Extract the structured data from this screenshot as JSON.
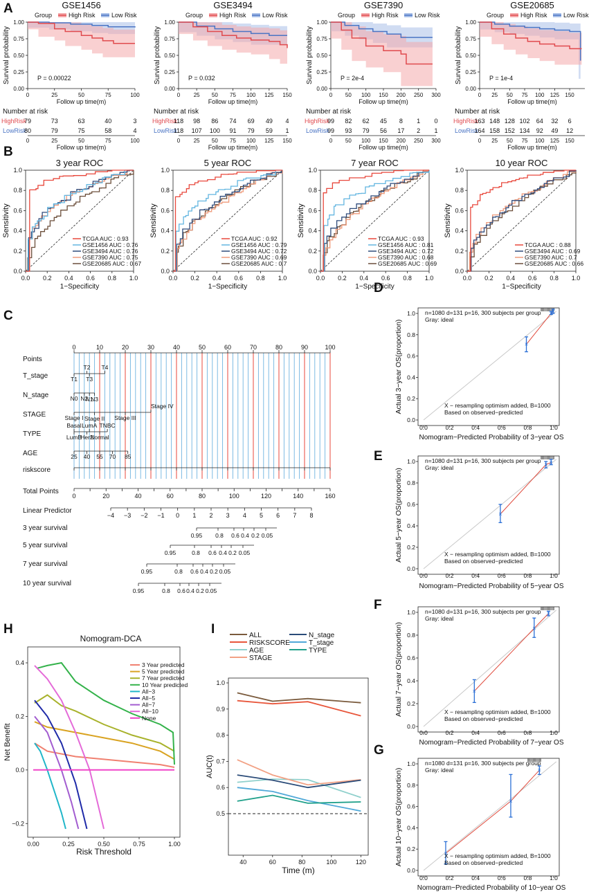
{
  "panel_letters": {
    "A": "A",
    "B": "B",
    "C": "C",
    "D": "D",
    "E": "E",
    "F": "F",
    "G": "G",
    "H": "H",
    "I": "I"
  },
  "colors": {
    "high": "#e04a4e",
    "low": "#4a74c4",
    "high_band": "#f4a9ab",
    "low_band": "#a9c0e8",
    "red_line": "#e04a3c",
    "blue_err": "#2a6fd6"
  },
  "km": [
    {
      "title": "GSE1456",
      "xmax": 100,
      "xticks": [
        0,
        25,
        50,
        75,
        100
      ],
      "ylabel": "Survival probability",
      "xlabel": "Follow up time(m)",
      "group_label": "Group",
      "legend": [
        "High Risk",
        "Low Risk"
      ],
      "p_text": "P = 0.00022",
      "high": [
        [
          0,
          1
        ],
        [
          10,
          0.98
        ],
        [
          25,
          0.9
        ],
        [
          35,
          0.86
        ],
        [
          50,
          0.8
        ],
        [
          60,
          0.76
        ],
        [
          70,
          0.72
        ],
        [
          80,
          0.68
        ],
        [
          100,
          0.68
        ]
      ],
      "low": [
        [
          0,
          1
        ],
        [
          20,
          0.99
        ],
        [
          40,
          0.97
        ],
        [
          60,
          0.95
        ],
        [
          75,
          0.93
        ],
        [
          100,
          0.92
        ]
      ],
      "risk_title": "Number at risk",
      "row_labels": [
        "HighRisk",
        "LowRisk"
      ],
      "high_counts": [
        "79",
        "73",
        "63",
        "40",
        "3"
      ],
      "low_counts": [
        "80",
        "79",
        "75",
        "58",
        "4"
      ]
    },
    {
      "title": "GSE3494",
      "xmax": 150,
      "xticks": [
        0,
        25,
        50,
        75,
        100,
        125,
        150
      ],
      "ylabel": "Survival probability",
      "xlabel": "Follow up time(m)",
      "group_label": "Group",
      "legend": [
        "High Risk",
        "Low Risk"
      ],
      "p_text": "P = 0.032",
      "high": [
        [
          0,
          1
        ],
        [
          20,
          0.93
        ],
        [
          40,
          0.86
        ],
        [
          60,
          0.8
        ],
        [
          80,
          0.76
        ],
        [
          100,
          0.73
        ],
        [
          125,
          0.71
        ],
        [
          140,
          0.66
        ],
        [
          150,
          0.61
        ]
      ],
      "low": [
        [
          0,
          1
        ],
        [
          25,
          0.94
        ],
        [
          50,
          0.9
        ],
        [
          75,
          0.86
        ],
        [
          100,
          0.83
        ],
        [
          125,
          0.8
        ],
        [
          150,
          0.8
        ]
      ],
      "risk_title": "Number at risk",
      "row_labels": [
        "HighRisk",
        "LowRisk"
      ],
      "high_counts": [
        "118",
        "98",
        "86",
        "74",
        "69",
        "49",
        "4"
      ],
      "low_counts": [
        "118",
        "107",
        "100",
        "91",
        "79",
        "59",
        "1"
      ]
    },
    {
      "title": "GSE7390",
      "xmax": 300,
      "xticks": [
        0,
        50,
        100,
        150,
        200,
        250,
        300
      ],
      "ylabel": "Survival probability",
      "xlabel": "Follow up time(m)",
      "group_label": "Group",
      "legend": [
        "High Risk",
        "Low Risk"
      ],
      "p_text": "P = 2e-4",
      "high": [
        [
          0,
          1
        ],
        [
          30,
          0.88
        ],
        [
          60,
          0.76
        ],
        [
          100,
          0.64
        ],
        [
          150,
          0.57
        ],
        [
          200,
          0.52
        ],
        [
          215,
          0.37
        ],
        [
          290,
          0.37
        ]
      ],
      "low": [
        [
          0,
          1
        ],
        [
          40,
          0.95
        ],
        [
          80,
          0.9
        ],
        [
          120,
          0.86
        ],
        [
          160,
          0.82
        ],
        [
          200,
          0.77
        ],
        [
          290,
          0.77
        ]
      ],
      "risk_title": "Number at risk",
      "row_labels": [
        "HighRisk",
        "LowRisk"
      ],
      "high_counts": [
        "99",
        "82",
        "62",
        "45",
        "8",
        "1",
        "0"
      ],
      "low_counts": [
        "99",
        "93",
        "79",
        "56",
        "17",
        "2",
        "1"
      ]
    },
    {
      "title": "GSE20685",
      "xmax": 170,
      "xticks": [
        0,
        25,
        50,
        75,
        100,
        125,
        150
      ],
      "ylabel": "Survival probability",
      "xlabel": "Follow up time(m)",
      "group_label": "Group",
      "legend": [
        "High Risk",
        "Low Risk"
      ],
      "p_text": "P = 1e-4",
      "high": [
        [
          0,
          1
        ],
        [
          20,
          0.9
        ],
        [
          40,
          0.82
        ],
        [
          60,
          0.76
        ],
        [
          80,
          0.71
        ],
        [
          100,
          0.67
        ],
        [
          125,
          0.64
        ],
        [
          150,
          0.6
        ],
        [
          170,
          0.6
        ]
      ],
      "low": [
        [
          0,
          1
        ],
        [
          25,
          0.97
        ],
        [
          50,
          0.94
        ],
        [
          75,
          0.92
        ],
        [
          100,
          0.9
        ],
        [
          125,
          0.88
        ],
        [
          150,
          0.86
        ],
        [
          165,
          0.86
        ],
        [
          168,
          0.42
        ]
      ],
      "risk_title": "Number at risk",
      "row_labels": [
        "HighRisk",
        "LowRisk"
      ],
      "high_counts": [
        "163",
        "148",
        "128",
        "102",
        "64",
        "32",
        "6"
      ],
      "low_counts": [
        "164",
        "158",
        "152",
        "134",
        "92",
        "49",
        "12"
      ]
    }
  ],
  "roc": [
    {
      "title": "3 year ROC",
      "ylabel": "Sensitivity",
      "xlabel": "1−Specificity",
      "legend": [
        "TCGA AUC : 0.93",
        "GSE1456 AUC : 0.76",
        "GSE3494 AUC : 0.76",
        "GSE7390 AUC : 0.75",
        "GSE20685 AUC : 0.67"
      ],
      "aucs": [
        0.93,
        0.76,
        0.76,
        0.75,
        0.67
      ]
    },
    {
      "title": "5 year ROC",
      "ylabel": "Sensitivity",
      "xlabel": "1−Specificity",
      "legend": [
        "TCGA AUC : 0.92",
        "GSE1456 AUC : 0.79",
        "GSE3494 AUC : 0.72",
        "GSE7390 AUC : 0.69",
        "GSE20685 AUC : 0.7"
      ],
      "aucs": [
        0.92,
        0.79,
        0.72,
        0.69,
        0.7
      ]
    },
    {
      "title": "7 year ROC",
      "ylabel": "Sensitivity",
      "xlabel": "1−Specificity",
      "legend": [
        "TCGA AUC : 0.93",
        "GSE1456 AUC : 0.81",
        "GSE3494 AUC : 0.72",
        "GSE7390 AUC : 0.68",
        "GSE20685 AUC : 0.69"
      ],
      "aucs": [
        0.93,
        0.81,
        0.72,
        0.68,
        0.69
      ]
    },
    {
      "title": "10 year ROC",
      "ylabel": "Sensitivity",
      "xlabel": "1−Specificity",
      "legend": [
        "TCGA AUC : 0.88",
        "GSE3494 AUC : 0.69",
        "GSE7390 AUC : 0.7",
        "GSE20685 AUC : 0.66"
      ],
      "aucs": [
        0.88,
        0.69,
        0.7,
        0.66
      ]
    }
  ],
  "roc_colors_4": [
    "#e8473b",
    "#62b5e0",
    "#2e4a7a",
    "#ef9a7a",
    "#6b4e3a"
  ],
  "roc_colors_3": [
    "#e8473b",
    "#2e4a7a",
    "#ef9a7a",
    "#6b4e3a"
  ],
  "roc_ticks": [
    "0.0",
    "0.2",
    "0.4",
    "0.6",
    "0.8",
    "1.0"
  ],
  "nomogram": {
    "points_label": "Points",
    "points_ticks": [
      "0",
      "10",
      "20",
      "30",
      "40",
      "50",
      "60",
      "70",
      "80",
      "90",
      "100"
    ],
    "rows": [
      {
        "name": "T_stage",
        "labels": [
          "T2",
          "T4",
          "T1",
          "T3"
        ]
      },
      {
        "name": "N_stage",
        "labels": [
          "N1",
          "N3",
          "N0",
          "N2"
        ]
      },
      {
        "name": "STAGE",
        "labels": [
          "Stage II",
          "Stage IV",
          "Stage I",
          "Stage III"
        ]
      },
      {
        "name": "TYPE",
        "labels": [
          "Basal",
          "LumA",
          "TNBC",
          "LumB",
          "Her2",
          "Normal"
        ]
      },
      {
        "name": "AGE",
        "labels": [
          "25",
          "40",
          "55",
          "70",
          "85"
        ]
      },
      {
        "name": "riskscore",
        "labels": [
          "0",
          "5",
          "10",
          "15",
          "20",
          "25"
        ]
      }
    ],
    "total_label": "Total Points",
    "total_ticks": [
      "0",
      "20",
      "40",
      "60",
      "80",
      "100",
      "120",
      "140",
      "160"
    ],
    "lp_label": "Linear Predictor",
    "lp_ticks": [
      "−4",
      "−3",
      "−2",
      "−1",
      "0",
      "1",
      "2",
      "3",
      "4",
      "5",
      "6",
      "7",
      "8"
    ],
    "surv": [
      {
        "label": "3 year survival",
        "ticks": [
          "0.95",
          "0.8",
          "0.6",
          "0.4",
          "0.2",
          "0.05"
        ]
      },
      {
        "label": "5 year survival",
        "ticks": [
          "0.95",
          "0.8",
          "0.6",
          "0.4",
          "0.2",
          "0.05"
        ]
      },
      {
        "label": "7 year survival",
        "ticks": [
          "0.95",
          "0.8",
          "0.6",
          "0.4",
          "0.2",
          "0.05"
        ]
      },
      {
        "label": "10 year survival",
        "ticks": [
          "0.95",
          "0.8",
          "0.6",
          "0.4",
          "0.2",
          "0.05"
        ]
      }
    ]
  },
  "calibration": [
    {
      "ylabel": "Actual 3−year OS(proportion)",
      "xlabel": "Nomogram−Predicted Probability of 3−year OS",
      "info": "n=1080 d=131 p=16, 300 subjects per group",
      "gray": "Gray: ideal",
      "note1": "X − resampling optimism added, B=1000",
      "note2": "Based on observed−predicted",
      "points": [
        {
          "x": 0.79,
          "y": 0.71,
          "lo": 0.64,
          "hi": 0.78
        },
        {
          "x": 0.98,
          "y": 1.0,
          "lo": 0.99,
          "hi": 1.02
        },
        {
          "x": 0.995,
          "y": 1.02,
          "lo": 1.0,
          "hi": 1.04
        }
      ]
    },
    {
      "ylabel": "Actual 5−year OS(proportion)",
      "xlabel": "Nomogram−Predicted Probability of 5−year OS",
      "info": "n=1080 d=131 p=16, 300 subjects per group",
      "gray": "Gray: ideal",
      "note1": "X − resampling optimism added, B=1000",
      "note2": "Based on observed−predicted",
      "points": [
        {
          "x": 0.59,
          "y": 0.51,
          "lo": 0.43,
          "hi": 0.6
        },
        {
          "x": 0.94,
          "y": 0.97,
          "lo": 0.94,
          "hi": 1.0
        },
        {
          "x": 0.98,
          "y": 0.99,
          "lo": 0.97,
          "hi": 1.02
        }
      ]
    },
    {
      "ylabel": "Actual 7−year OS(proportion)",
      "xlabel": "Nomogram−Predicted Probability of 7−year OS",
      "info": "n=1080 d=131 p=16, 300 subjects per group",
      "gray": "Gray: ideal",
      "note1": "X − resampling optimism added, B=1000",
      "note2": "Based on observed−predicted",
      "points": [
        {
          "x": 0.39,
          "y": 0.31,
          "lo": 0.21,
          "hi": 0.41
        },
        {
          "x": 0.85,
          "y": 0.86,
          "lo": 0.78,
          "hi": 0.95
        },
        {
          "x": 0.96,
          "y": 0.99,
          "lo": 0.97,
          "hi": 1.01
        }
      ]
    },
    {
      "ylabel": "Actual 10−year OS(proportion)",
      "xlabel": "Nomogram−Predicted Probability of 10−year OS",
      "info": "n=1080 d=131 p=16, 300 subjects per group",
      "gray": "Gray: ideal",
      "note1": "X − resampling optimism added, B=1000",
      "note2": "Based on observed−predicted",
      "points": [
        {
          "x": 0.17,
          "y": 0.16,
          "lo": 0.06,
          "hi": 0.27
        },
        {
          "x": 0.67,
          "y": 0.65,
          "lo": 0.5,
          "hi": 0.9
        },
        {
          "x": 0.89,
          "y": 0.94,
          "lo": 0.9,
          "hi": 0.98
        }
      ]
    }
  ],
  "cal_ticks": [
    "0.0",
    "0.2",
    "0.4",
    "0.6",
    "0.8",
    "1.0"
  ],
  "dca": {
    "title": "Nomogram-DCA",
    "ylabel": "Net Benefit",
    "xlabel": "Risk Threshold",
    "xticks": [
      "0.00",
      "0.25",
      "0.50",
      "0.75",
      "1.00"
    ],
    "yticks": [
      "−0.2",
      "0.0",
      "0.2",
      "0.4"
    ],
    "series": [
      {
        "name": "3 Year predicted",
        "color": "#f08070",
        "pts": [
          [
            0.01,
            0.1
          ],
          [
            0.1,
            0.07
          ],
          [
            0.3,
            0.05
          ],
          [
            0.5,
            0.04
          ],
          [
            0.7,
            0.03
          ],
          [
            0.9,
            0.02
          ],
          [
            1.0,
            0.01
          ]
        ]
      },
      {
        "name": "5 Year predicted",
        "color": "#d9a321",
        "pts": [
          [
            0.01,
            0.18
          ],
          [
            0.1,
            0.16
          ],
          [
            0.3,
            0.14
          ],
          [
            0.5,
            0.12
          ],
          [
            0.7,
            0.1
          ],
          [
            0.9,
            0.07
          ],
          [
            1.0,
            0.04
          ]
        ]
      },
      {
        "name": "7 Year predicted",
        "color": "#a8b22b",
        "pts": [
          [
            0.01,
            0.25
          ],
          [
            0.1,
            0.28
          ],
          [
            0.2,
            0.24
          ],
          [
            0.3,
            0.22
          ],
          [
            0.5,
            0.17
          ],
          [
            0.7,
            0.13
          ],
          [
            0.9,
            0.1
          ],
          [
            1.0,
            0.07
          ]
        ]
      },
      {
        "name": "10 Year predicted",
        "color": "#33b24a",
        "pts": [
          [
            0.03,
            0.38
          ],
          [
            0.1,
            0.39
          ],
          [
            0.2,
            0.4
          ],
          [
            0.3,
            0.33
          ],
          [
            0.5,
            0.26
          ],
          [
            0.7,
            0.21
          ],
          [
            0.9,
            0.17
          ],
          [
            0.99,
            0.14
          ],
          [
            1.0,
            0.02
          ]
        ]
      },
      {
        "name": "All−3",
        "color": "#20b6c9",
        "pts": [
          [
            0.01,
            0.1
          ],
          [
            0.05,
            0.07
          ],
          [
            0.1,
            0.0
          ],
          [
            0.15,
            -0.08
          ],
          [
            0.2,
            -0.16
          ],
          [
            0.23,
            -0.22
          ]
        ]
      },
      {
        "name": "All−5",
        "color": "#1f2aa8",
        "pts": [
          [
            0.01,
            0.26
          ],
          [
            0.1,
            0.2
          ],
          [
            0.2,
            0.1
          ],
          [
            0.3,
            -0.05
          ],
          [
            0.38,
            -0.22
          ]
        ]
      },
      {
        "name": "All−7",
        "color": "#a25cd0",
        "pts": [
          [
            0.01,
            0.2
          ],
          [
            0.1,
            0.14
          ],
          [
            0.2,
            0.0
          ],
          [
            0.27,
            -0.12
          ],
          [
            0.32,
            -0.22
          ]
        ]
      },
      {
        "name": "All−10",
        "color": "#e46ad8",
        "pts": [
          [
            0.01,
            0.39
          ],
          [
            0.1,
            0.34
          ],
          [
            0.2,
            0.26
          ],
          [
            0.3,
            0.14
          ],
          [
            0.4,
            0.0
          ],
          [
            0.5,
            -0.22
          ]
        ]
      },
      {
        "name": "None",
        "color": "#f044c8",
        "pts": [
          [
            0,
            0
          ],
          [
            1,
            0
          ]
        ]
      }
    ]
  },
  "auc": {
    "ylabel": "AUC(t)",
    "xlabel": "Time (m)",
    "xticks": [
      "40",
      "60",
      "80",
      "100",
      "120"
    ],
    "yticks": [
      "0.5",
      "0.6",
      "0.7",
      "0.8",
      "0.9",
      "1.0"
    ],
    "x": [
      36,
      60,
      84,
      120
    ],
    "series": [
      {
        "name": "ALL",
        "color": "#7a5a3c",
        "values": [
          0.962,
          0.93,
          0.94,
          0.924
        ]
      },
      {
        "name": "RISKSCORE",
        "color": "#e8553a",
        "values": [
          0.932,
          0.92,
          0.928,
          0.874
        ]
      },
      {
        "name": "AGE",
        "color": "#8fd0cc",
        "values": [
          0.62,
          0.632,
          0.63,
          0.562
        ]
      },
      {
        "name": "STAGE",
        "color": "#f2a184",
        "values": [
          0.706,
          0.648,
          0.61,
          0.63
        ]
      },
      {
        "name": "N_stage",
        "color": "#2a4b78",
        "values": [
          0.648,
          0.628,
          0.6,
          0.628
        ]
      },
      {
        "name": "T_stage",
        "color": "#4fa8d8",
        "values": [
          0.6,
          0.585,
          0.55,
          0.51
        ]
      },
      {
        "name": "TYPE",
        "color": "#1fa08a",
        "values": [
          0.548,
          0.57,
          0.54,
          0.545
        ]
      }
    ],
    "baseline": 0.5
  }
}
